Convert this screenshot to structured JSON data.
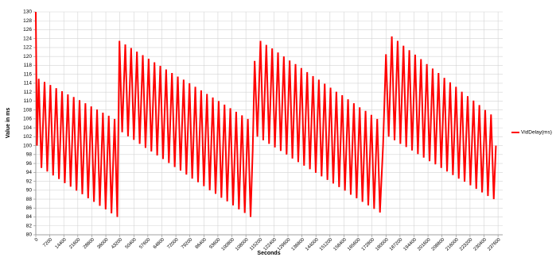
{
  "chart_data": {
    "type": "line",
    "x_label": "Seconds",
    "y_label": "Value in ms",
    "legend": "right",
    "grid": true,
    "xlim": [
      0,
      240000
    ],
    "ylim": [
      80,
      130
    ],
    "xticks": [
      0,
      7200,
      14400,
      21600,
      28800,
      36000,
      43200,
      50400,
      57600,
      64800,
      72000,
      79200,
      86400,
      93600,
      100800,
      108000,
      115200,
      122400,
      129600,
      136800,
      144000,
      151200,
      158400,
      165600,
      172800,
      180000,
      187200,
      194400,
      201600,
      208800,
      216000,
      223200,
      230400,
      237600
    ],
    "yticks": [
      80,
      82,
      84,
      86,
      88,
      90,
      92,
      94,
      96,
      98,
      100,
      102,
      104,
      106,
      108,
      110,
      112,
      114,
      116,
      118,
      120,
      122,
      124,
      126,
      128,
      130
    ],
    "x": [
      0,
      600,
      1500,
      2900,
      4500,
      5900,
      7500,
      8900,
      10500,
      11900,
      13500,
      14900,
      16500,
      17900,
      19500,
      20900,
      22500,
      23900,
      25500,
      26900,
      28500,
      29900,
      31500,
      32900,
      34500,
      35900,
      37500,
      38900,
      40500,
      41900,
      43000,
      44400,
      46000,
      47400,
      49000,
      50400,
      52000,
      53400,
      55000,
      56400,
      58000,
      59400,
      61000,
      62400,
      64000,
      65400,
      67000,
      68400,
      70000,
      71400,
      73000,
      74400,
      76000,
      77400,
      79000,
      80400,
      82000,
      83400,
      85000,
      86400,
      88000,
      89400,
      91000,
      92400,
      94000,
      95400,
      97000,
      98400,
      100000,
      101400,
      103000,
      104400,
      106000,
      107400,
      109000,
      110400,
      111500,
      112500,
      113900,
      115500,
      116900,
      118500,
      119900,
      121500,
      122900,
      124500,
      125900,
      127500,
      128900,
      130500,
      131900,
      133500,
      134900,
      136500,
      137900,
      139500,
      140900,
      142500,
      143900,
      145500,
      146900,
      148500,
      149900,
      151500,
      152900,
      154500,
      155900,
      157500,
      158900,
      160500,
      161900,
      163500,
      164900,
      166500,
      167900,
      169500,
      170900,
      172500,
      173900,
      175500,
      176900,
      178500,
      180000,
      181400,
      183000,
      184400,
      186000,
      187400,
      189000,
      190400,
      192000,
      193400,
      195000,
      196400,
      198000,
      199400,
      201000,
      202400,
      204000,
      205400,
      207000,
      208400,
      210000,
      211400,
      213000,
      214400,
      216000,
      217400,
      219000,
      220400,
      222000,
      223400,
      225000,
      226400,
      228000,
      229400,
      231000,
      232400,
      234000,
      235400,
      236500
    ],
    "series": [
      {
        "name": "VidDelay(ms)",
        "color": "#ff0000",
        "values": [
          130,
          100,
          115,
          95,
          114.3,
          94.2,
          113.6,
          93.3,
          112.9,
          92.5,
          112.2,
          91.6,
          111.5,
          90.8,
          110.9,
          89.9,
          110.2,
          89.1,
          109.5,
          88.2,
          108.8,
          87.4,
          108.1,
          86.5,
          107.4,
          85.7,
          106.7,
          84.8,
          106,
          84,
          123.5,
          103,
          122.7,
          102.1,
          121.9,
          101.3,
          121.1,
          100.4,
          120.3,
          99.5,
          119.5,
          98.7,
          118.7,
          97.8,
          117.9,
          97,
          117.1,
          96.1,
          116.3,
          95.2,
          115.5,
          94.4,
          114.8,
          93.5,
          114,
          92.6,
          113.2,
          91.8,
          112.4,
          90.9,
          111.6,
          90,
          110.8,
          89.2,
          110,
          88.3,
          109.2,
          87.5,
          108.4,
          86.6,
          107.6,
          85.7,
          106.8,
          84.9,
          106,
          84,
          99,
          119,
          102,
          123.5,
          101.2,
          122.6,
          100.4,
          121.8,
          99.6,
          120.9,
          98.8,
          120,
          98,
          119.1,
          97.1,
          118.3,
          96.3,
          117.4,
          95.5,
          116.5,
          94.7,
          115.6,
          93.9,
          114.8,
          93.1,
          113.9,
          92.3,
          113,
          91.5,
          112.1,
          90.7,
          111.3,
          89.9,
          110.4,
          89,
          109.5,
          88.2,
          108.6,
          87.4,
          107.8,
          86.6,
          106.9,
          85.8,
          106,
          85,
          100,
          120.5,
          102,
          124.5,
          101.2,
          123.5,
          100.4,
          122.4,
          99.7,
          121.4,
          98.9,
          120.4,
          98.1,
          119.4,
          97.3,
          118.3,
          96.5,
          117.3,
          95.8,
          116.3,
          95,
          115.2,
          94.2,
          114.2,
          93.4,
          113.2,
          92.6,
          112.1,
          91.9,
          111.1,
          91.1,
          110.1,
          90.3,
          109.1,
          89.5,
          108,
          88.7,
          107,
          88,
          100
        ]
      }
    ]
  }
}
